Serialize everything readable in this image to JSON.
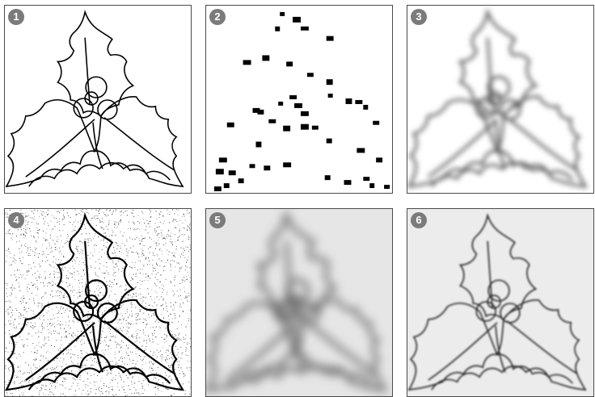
{
  "panels": [
    {
      "label": "1",
      "variant": "clean line drawing"
    },
    {
      "label": "2",
      "variant": "sparse pixel samples"
    },
    {
      "label": "3",
      "variant": "blurred"
    },
    {
      "label": "4",
      "variant": "salt-and-pepper noise"
    },
    {
      "label": "5",
      "variant": "heavily blurred"
    },
    {
      "label": "6",
      "variant": "slightly blurred"
    }
  ],
  "colors": {
    "badge": "#7b7b7b",
    "line": "#000000",
    "border": "#4a4a4a"
  }
}
